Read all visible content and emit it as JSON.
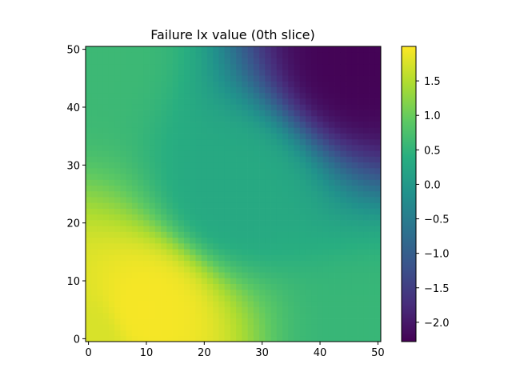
{
  "chart_data": {
    "type": "heatmap",
    "title": "Failure lx value (0th slice)",
    "xlabel": "",
    "ylabel": "",
    "x_range": [
      -0.5,
      50.5
    ],
    "y_range": [
      -0.5,
      50.5
    ],
    "grid_size": [
      51,
      51
    ],
    "x_ticks": [
      0,
      10,
      20,
      30,
      40,
      50
    ],
    "y_ticks": [
      0,
      10,
      20,
      30,
      40,
      50
    ],
    "colormap": "viridis",
    "colorbar": {
      "range": [
        -2.28,
        2.0
      ],
      "ticks": [
        1.5,
        1.0,
        0.5,
        0.0,
        -0.5,
        -1.0,
        -1.5,
        -2.0
      ],
      "tick_labels": [
        "1.5",
        "1.0",
        "0.5",
        "0.0",
        "−0.5",
        "−1.0",
        "−1.5",
        "−2.0"
      ]
    },
    "sample_values": [
      {
        "x": 10,
        "y": 5,
        "value": 1.95
      },
      {
        "x": 0,
        "y": 0,
        "value": 1.75
      },
      {
        "x": 0,
        "y": 50,
        "value": 0.6
      },
      {
        "x": 50,
        "y": 0,
        "value": 0.55
      },
      {
        "x": 25,
        "y": 25,
        "value": 0.3
      },
      {
        "x": 47,
        "y": 48,
        "value": -2.25
      }
    ],
    "grid": false
  }
}
